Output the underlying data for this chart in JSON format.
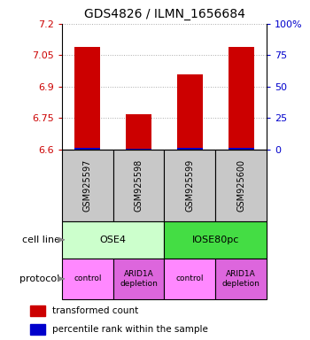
{
  "title": "GDS4826 / ILMN_1656684",
  "samples": [
    "GSM925597",
    "GSM925598",
    "GSM925599",
    "GSM925600"
  ],
  "red_values": [
    7.09,
    6.77,
    6.96,
    7.09
  ],
  "blue_values": [
    1.5,
    0.8,
    1.5,
    1.5
  ],
  "y_min": 6.6,
  "y_max": 7.2,
  "y_ticks": [
    6.6,
    6.75,
    6.9,
    7.05,
    7.2
  ],
  "y_right_ticks": [
    0,
    25,
    50,
    75,
    100
  ],
  "cell_line_labels": [
    "OSE4",
    "IOSE80pc"
  ],
  "cell_line_colors": [
    "#ccffcc",
    "#44dd44"
  ],
  "cell_line_spans": [
    [
      0,
      2
    ],
    [
      2,
      4
    ]
  ],
  "protocol_labels": [
    "control",
    "ARID1A\ndepletion",
    "control",
    "ARID1A\ndepletion"
  ],
  "protocol_colors": [
    "#ff88ff",
    "#dd66dd",
    "#ff88ff",
    "#dd66dd"
  ],
  "bar_width": 0.5,
  "red_color": "#cc0000",
  "blue_color": "#0000cc",
  "legend_red": "transformed count",
  "legend_blue": "percentile rank within the sample",
  "cell_line_label": "cell line",
  "protocol_label": "protocol",
  "grid_color": "#aaaaaa",
  "gsm_bg_color": "#c8c8c8"
}
